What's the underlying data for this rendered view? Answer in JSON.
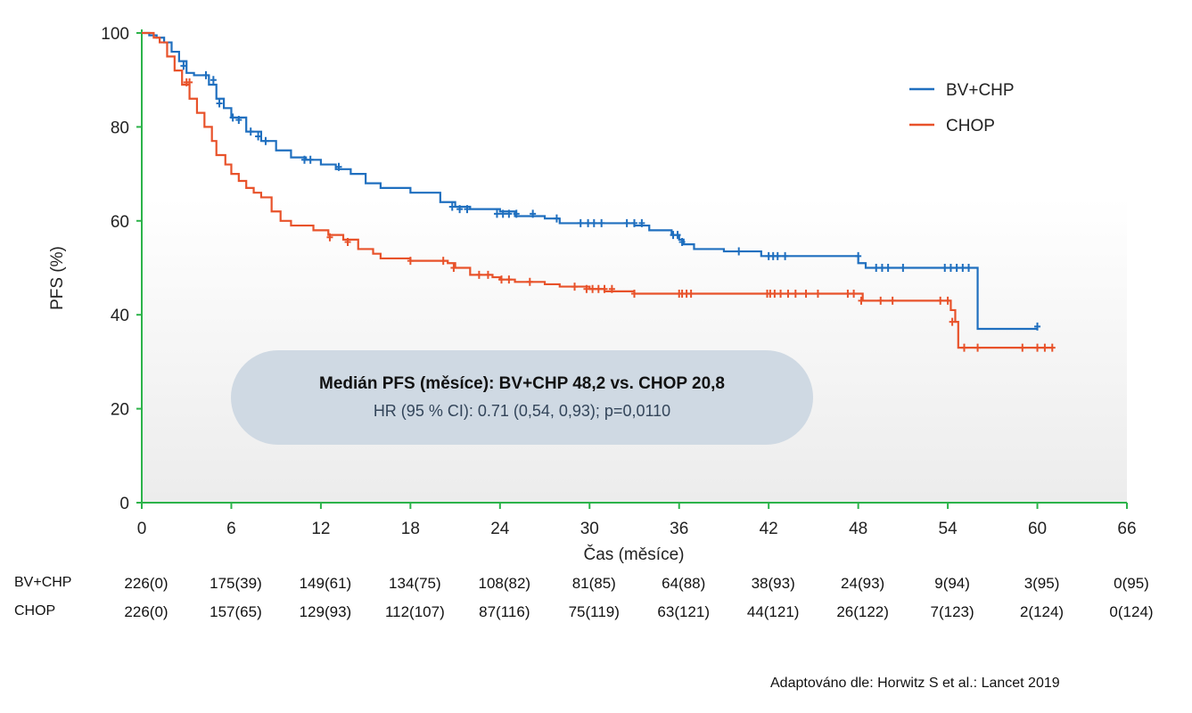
{
  "chart_data": {
    "type": "line",
    "xlabel": "Čas (měsíce)",
    "ylabel": "PFS (%)",
    "xlim": [
      0,
      66
    ],
    "ylim": [
      0,
      100
    ],
    "xticks": [
      "0",
      "6",
      "12",
      "18",
      "24",
      "30",
      "36",
      "42",
      "48",
      "54",
      "60",
      "66"
    ],
    "yticks": [
      "0",
      "20",
      "40",
      "60",
      "80",
      "100"
    ],
    "legend_position": "top-right",
    "series": [
      {
        "name": "BV+CHP",
        "color": "#1f6fbf",
        "step": true,
        "x": [
          0,
          0.5,
          1.0,
          1.5,
          2.0,
          2.5,
          3.0,
          3.5,
          4.5,
          5.0,
          5.5,
          6.0,
          7.0,
          8.0,
          9.0,
          10.0,
          11.0,
          12.0,
          13.0,
          14.0,
          15.0,
          16.0,
          18.0,
          20.0,
          21.0,
          22.0,
          24.0,
          25.0,
          27.0,
          28.0,
          30.0,
          33.0,
          34.0,
          35.5,
          36.0,
          36.3,
          37.0,
          39.0,
          41.5,
          43.0,
          48.0,
          48.5,
          52.0,
          55.0,
          56.0,
          60.0
        ],
        "y": [
          100,
          99.5,
          99,
          98,
          96,
          94,
          91.5,
          91,
          89,
          86,
          84,
          82,
          79,
          77,
          75,
          73.5,
          73,
          72,
          71,
          70,
          68,
          67,
          66,
          64,
          63,
          62.5,
          62,
          61,
          60.5,
          59.5,
          59.5,
          59,
          58,
          57,
          56,
          55,
          54,
          53.5,
          52.5,
          52.5,
          51,
          50,
          50,
          50,
          37,
          37
        ],
        "censor_x": [
          2.8,
          4.3,
          4.8,
          5.2,
          6.1,
          6.5,
          7.3,
          7.8,
          8.3,
          10.9,
          11.3,
          13.2,
          20.8,
          21.3,
          21.8,
          23.8,
          24.2,
          24.6,
          25.1,
          26.2,
          27.8,
          29.4,
          29.9,
          30.3,
          30.8,
          32.5,
          33.0,
          33.5,
          35.6,
          35.9,
          36.2,
          40.0,
          42.0,
          42.3,
          42.6,
          43.1,
          48.0,
          49.2,
          49.6,
          50.0,
          51.0,
          53.8,
          54.2,
          54.6,
          55.0,
          55.4,
          60.0
        ],
        "censor_y": [
          93,
          91,
          90,
          85,
          82,
          81.5,
          79,
          78,
          77,
          73,
          73,
          71.5,
          63,
          62.5,
          62.5,
          61.5,
          61.5,
          61.5,
          61.5,
          61.5,
          60.5,
          59.5,
          59.5,
          59.5,
          59.5,
          59.5,
          59.5,
          59.5,
          57,
          57,
          55.5,
          53.5,
          52.5,
          52.5,
          52.5,
          52.5,
          52.5,
          50,
          50,
          50,
          50,
          50,
          50,
          50,
          50,
          50,
          37.5
        ]
      },
      {
        "name": "CHOP",
        "color": "#e8522a",
        "step": true,
        "x": [
          0,
          0.8,
          1.2,
          1.7,
          2.2,
          2.7,
          3.2,
          3.7,
          4.2,
          4.7,
          5.0,
          5.6,
          6.0,
          6.5,
          7.0,
          7.5,
          8.0,
          8.7,
          9.3,
          10.0,
          10.5,
          11.5,
          12.5,
          13.5,
          14.5,
          15.5,
          16.0,
          18.0,
          20.5,
          21.0,
          22.0,
          23.5,
          24.0,
          25.0,
          27.0,
          28.0,
          30.0,
          31.0,
          33.0,
          48.0,
          48.3,
          49.0,
          54.0,
          54.2,
          54.5,
          54.7,
          56.0,
          59.0,
          61.0
        ],
        "y": [
          100,
          99,
          98,
          95,
          92,
          89,
          86,
          83,
          80,
          77,
          74,
          72,
          70,
          68.5,
          67,
          66,
          65,
          62,
          60,
          59,
          59,
          58,
          57,
          56,
          54,
          53,
          52,
          51.5,
          51,
          50,
          48.5,
          48,
          47.5,
          47,
          46.5,
          46,
          45.5,
          45,
          44.5,
          44.5,
          43,
          43,
          43,
          41,
          38.5,
          33,
          33,
          33,
          33
        ],
        "censor_x": [
          3.0,
          3.2,
          12.6,
          13.8,
          18.0,
          20.2,
          20.9,
          22.6,
          23.2,
          24.1,
          24.6,
          26.0,
          29.0,
          29.8,
          30.2,
          30.6,
          31.0,
          31.5,
          33.0,
          36.0,
          36.2,
          36.5,
          36.8,
          41.9,
          42.1,
          42.4,
          42.8,
          43.3,
          43.8,
          44.5,
          45.3,
          47.3,
          47.7,
          48.2,
          49.5,
          50.3,
          53.5,
          54.0,
          54.3,
          55.1,
          56.0,
          59.0,
          60.0,
          60.5,
          61.0
        ],
        "censor_y": [
          89.5,
          89.5,
          56.5,
          55.5,
          51.5,
          51.5,
          50,
          48.5,
          48.5,
          47.5,
          47.5,
          47,
          46,
          45.5,
          45.5,
          45.5,
          45.5,
          45.5,
          44.5,
          44.5,
          44.5,
          44.5,
          44.5,
          44.5,
          44.5,
          44.5,
          44.5,
          44.5,
          44.5,
          44.5,
          44.5,
          44.5,
          44.5,
          43,
          43,
          43,
          43,
          43,
          38.5,
          33,
          33,
          33,
          33,
          33,
          33
        ]
      }
    ],
    "annotation": {
      "line1": "Medián PFS (měsíce): BV+CHP 48,2 vs. CHOP 20,8",
      "line2": "HR (95 % CI): 0.71 (0,54, 0,93); p=0,0110"
    },
    "risk_table": {
      "times": [
        0,
        6,
        12,
        18,
        24,
        30,
        36,
        42,
        48,
        54,
        60,
        66
      ],
      "rows": [
        {
          "label": "BV+CHP",
          "values": [
            "226(0)",
            "175(39)",
            "149(61)",
            "134(75)",
            "108(82)",
            "81(85)",
            "64(88)",
            "38(93)",
            "24(93)",
            "9(94)",
            "3(95)",
            "0(95)"
          ]
        },
        {
          "label": "CHOP",
          "values": [
            "226(0)",
            "157(65)",
            "129(93)",
            "112(107)",
            "87(116)",
            "75(119)",
            "63(121)",
            "44(121)",
            "26(122)",
            "7(123)",
            "2(124)",
            "0(124)"
          ]
        }
      ]
    }
  },
  "source_note": "Adaptováno dle: Horwitz S et al.: Lancet 2019"
}
